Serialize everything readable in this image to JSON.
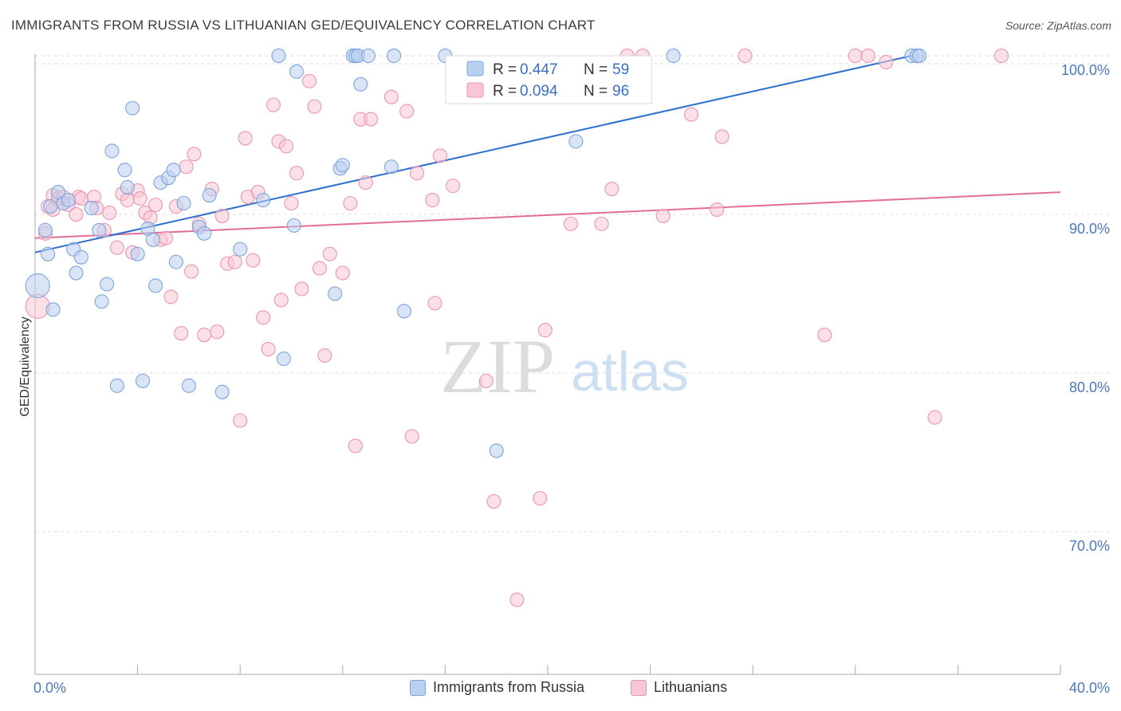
{
  "title": "IMMIGRANTS FROM RUSSIA VS LITHUANIAN GED/EQUIVALENCY CORRELATION CHART",
  "source": "Source: ZipAtlas.com",
  "watermark": {
    "zip": "ZIP",
    "atlas": "atlas"
  },
  "colors": {
    "blue_fill": "#b9d0f0",
    "blue_stroke": "#7ea4dc",
    "blue_line": "#2a6fce",
    "pink_fill": "#f8c6d4",
    "pink_stroke": "#eb96b0",
    "pink_line": "#e46d97",
    "tick_text": "#4a78c2"
  },
  "legend_box": {
    "rows": [
      {
        "r_label": "R =",
        "r_value": "0.447",
        "n_label": "N =",
        "n_value": "59"
      },
      {
        "r_label": "R =",
        "r_value": "0.094",
        "n_label": "N =",
        "n_value": "96"
      }
    ]
  },
  "bottom_legend": [
    {
      "label": "Immigrants from Russia"
    },
    {
      "label": "Lithuanians"
    }
  ],
  "chart_data": {
    "type": "scatter",
    "title": "IMMIGRANTS FROM RUSSIA VS LITHUANIAN GED/EQUIVALENCY CORRELATION CHART",
    "xlabel": "",
    "ylabel": "GED/Equivalency",
    "xlim": [
      0,
      40
    ],
    "ylim": [
      61,
      100.5
    ],
    "x_tick_labels": [
      "0.0%",
      "40.0%"
    ],
    "y_ticks": [
      70,
      80,
      90,
      100
    ],
    "y_tick_labels": [
      "70.0%",
      "80.0%",
      "90.0%",
      "100.0%"
    ],
    "grid": true,
    "legend_position": "top-center",
    "series": [
      {
        "name": "Immigrants from Russia",
        "R": 0.447,
        "N": 59,
        "trend": {
          "x": [
            0,
            34.2
          ],
          "y": [
            87.6,
            100
          ]
        },
        "points": [
          [
            0.1,
            85.5
          ],
          [
            0.4,
            89.0
          ],
          [
            0.5,
            87.5
          ],
          [
            0.6,
            90.5
          ],
          [
            0.7,
            84.0
          ],
          [
            0.9,
            91.4
          ],
          [
            1.1,
            90.7
          ],
          [
            1.3,
            90.9
          ],
          [
            1.5,
            87.8
          ],
          [
            1.6,
            86.3
          ],
          [
            1.8,
            87.3
          ],
          [
            2.2,
            90.4
          ],
          [
            2.5,
            89.0
          ],
          [
            2.6,
            84.5
          ],
          [
            2.8,
            85.6
          ],
          [
            3.0,
            94.0
          ],
          [
            3.2,
            79.2
          ],
          [
            3.5,
            92.8
          ],
          [
            3.6,
            91.7
          ],
          [
            3.8,
            96.7
          ],
          [
            4.0,
            87.5
          ],
          [
            4.2,
            79.5
          ],
          [
            4.4,
            89.1
          ],
          [
            4.6,
            88.4
          ],
          [
            4.7,
            85.5
          ],
          [
            4.9,
            92.0
          ],
          [
            5.2,
            92.3
          ],
          [
            5.4,
            92.8
          ],
          [
            5.5,
            87.0
          ],
          [
            5.8,
            90.7
          ],
          [
            6.0,
            79.2
          ],
          [
            6.4,
            89.2
          ],
          [
            6.6,
            88.8
          ],
          [
            6.8,
            91.2
          ],
          [
            7.3,
            78.8
          ],
          [
            8.0,
            87.8
          ],
          [
            8.9,
            90.9
          ],
          [
            9.5,
            100.0
          ],
          [
            9.7,
            80.9
          ],
          [
            10.1,
            89.3
          ],
          [
            10.2,
            99.0
          ],
          [
            11.7,
            85.0
          ],
          [
            11.9,
            92.9
          ],
          [
            12.0,
            93.1
          ],
          [
            12.4,
            100.0
          ],
          [
            12.5,
            100.0
          ],
          [
            12.6,
            100.0
          ],
          [
            12.7,
            98.2
          ],
          [
            13.0,
            100.0
          ],
          [
            13.9,
            93.0
          ],
          [
            14.0,
            100.0
          ],
          [
            14.4,
            83.9
          ],
          [
            16.0,
            100.0
          ],
          [
            18.0,
            75.1
          ],
          [
            21.1,
            94.6
          ],
          [
            24.9,
            100.0
          ],
          [
            34.2,
            100.0
          ],
          [
            34.4,
            100.0
          ],
          [
            34.5,
            100.0
          ]
        ]
      },
      {
        "name": "Lithuanians",
        "R": 0.094,
        "N": 96,
        "trend": {
          "x": [
            0,
            40
          ],
          "y": [
            88.5,
            91.4
          ]
        },
        "points": [
          [
            0.1,
            84.2
          ],
          [
            0.4,
            88.8
          ],
          [
            0.5,
            90.5
          ],
          [
            0.7,
            90.3
          ],
          [
            0.7,
            91.2
          ],
          [
            0.9,
            91.0
          ],
          [
            1.1,
            91.1
          ],
          [
            1.3,
            90.6
          ],
          [
            1.6,
            90.0
          ],
          [
            1.7,
            91.1
          ],
          [
            1.8,
            91.0
          ],
          [
            2.3,
            91.1
          ],
          [
            2.4,
            90.4
          ],
          [
            2.7,
            89.0
          ],
          [
            2.9,
            90.1
          ],
          [
            3.2,
            87.9
          ],
          [
            3.4,
            91.3
          ],
          [
            3.6,
            90.9
          ],
          [
            3.8,
            87.6
          ],
          [
            4.0,
            91.5
          ],
          [
            4.1,
            91.0
          ],
          [
            4.3,
            90.1
          ],
          [
            4.5,
            89.8
          ],
          [
            4.7,
            90.6
          ],
          [
            4.9,
            88.4
          ],
          [
            5.1,
            88.5
          ],
          [
            5.3,
            84.8
          ],
          [
            5.5,
            90.5
          ],
          [
            5.7,
            82.5
          ],
          [
            5.9,
            93.0
          ],
          [
            6.1,
            86.4
          ],
          [
            6.2,
            93.8
          ],
          [
            6.4,
            89.4
          ],
          [
            6.6,
            82.4
          ],
          [
            6.9,
            91.6
          ],
          [
            7.1,
            82.6
          ],
          [
            7.3,
            89.9
          ],
          [
            7.5,
            86.9
          ],
          [
            7.8,
            87.0
          ],
          [
            8.0,
            77.0
          ],
          [
            8.2,
            94.8
          ],
          [
            8.3,
            91.1
          ],
          [
            8.5,
            87.1
          ],
          [
            8.7,
            91.4
          ],
          [
            8.9,
            83.5
          ],
          [
            9.1,
            81.5
          ],
          [
            9.3,
            96.9
          ],
          [
            9.5,
            94.6
          ],
          [
            9.6,
            84.6
          ],
          [
            9.8,
            94.3
          ],
          [
            10.0,
            90.7
          ],
          [
            10.2,
            92.6
          ],
          [
            10.4,
            85.3
          ],
          [
            10.7,
            98.4
          ],
          [
            10.9,
            96.8
          ],
          [
            11.1,
            86.6
          ],
          [
            11.3,
            81.1
          ],
          [
            11.5,
            87.5
          ],
          [
            12.0,
            86.3
          ],
          [
            12.3,
            90.7
          ],
          [
            12.5,
            75.4
          ],
          [
            12.7,
            96.0
          ],
          [
            12.9,
            92.0
          ],
          [
            13.1,
            96.0
          ],
          [
            13.9,
            97.4
          ],
          [
            14.5,
            96.5
          ],
          [
            14.7,
            76.0
          ],
          [
            14.9,
            92.6
          ],
          [
            15.5,
            90.9
          ],
          [
            15.6,
            84.4
          ],
          [
            15.8,
            93.7
          ],
          [
            16.3,
            91.8
          ],
          [
            17.6,
            79.5
          ],
          [
            17.9,
            71.9
          ],
          [
            18.8,
            65.7
          ],
          [
            19.7,
            72.1
          ],
          [
            19.9,
            82.7
          ],
          [
            20.9,
            89.4
          ],
          [
            22.1,
            89.4
          ],
          [
            22.5,
            91.6
          ],
          [
            22.8,
            98.0
          ],
          [
            23.1,
            100.0
          ],
          [
            23.7,
            100.0
          ],
          [
            24.5,
            89.9
          ],
          [
            25.6,
            96.3
          ],
          [
            26.6,
            90.3
          ],
          [
            26.8,
            94.9
          ],
          [
            27.7,
            100.0
          ],
          [
            30.8,
            82.4
          ],
          [
            32.0,
            100.0
          ],
          [
            32.5,
            100.0
          ],
          [
            33.2,
            99.6
          ],
          [
            35.1,
            77.2
          ],
          [
            37.7,
            100.0
          ],
          [
            23.4,
            99.0
          ],
          [
            18.1,
            98.6
          ]
        ]
      }
    ]
  }
}
